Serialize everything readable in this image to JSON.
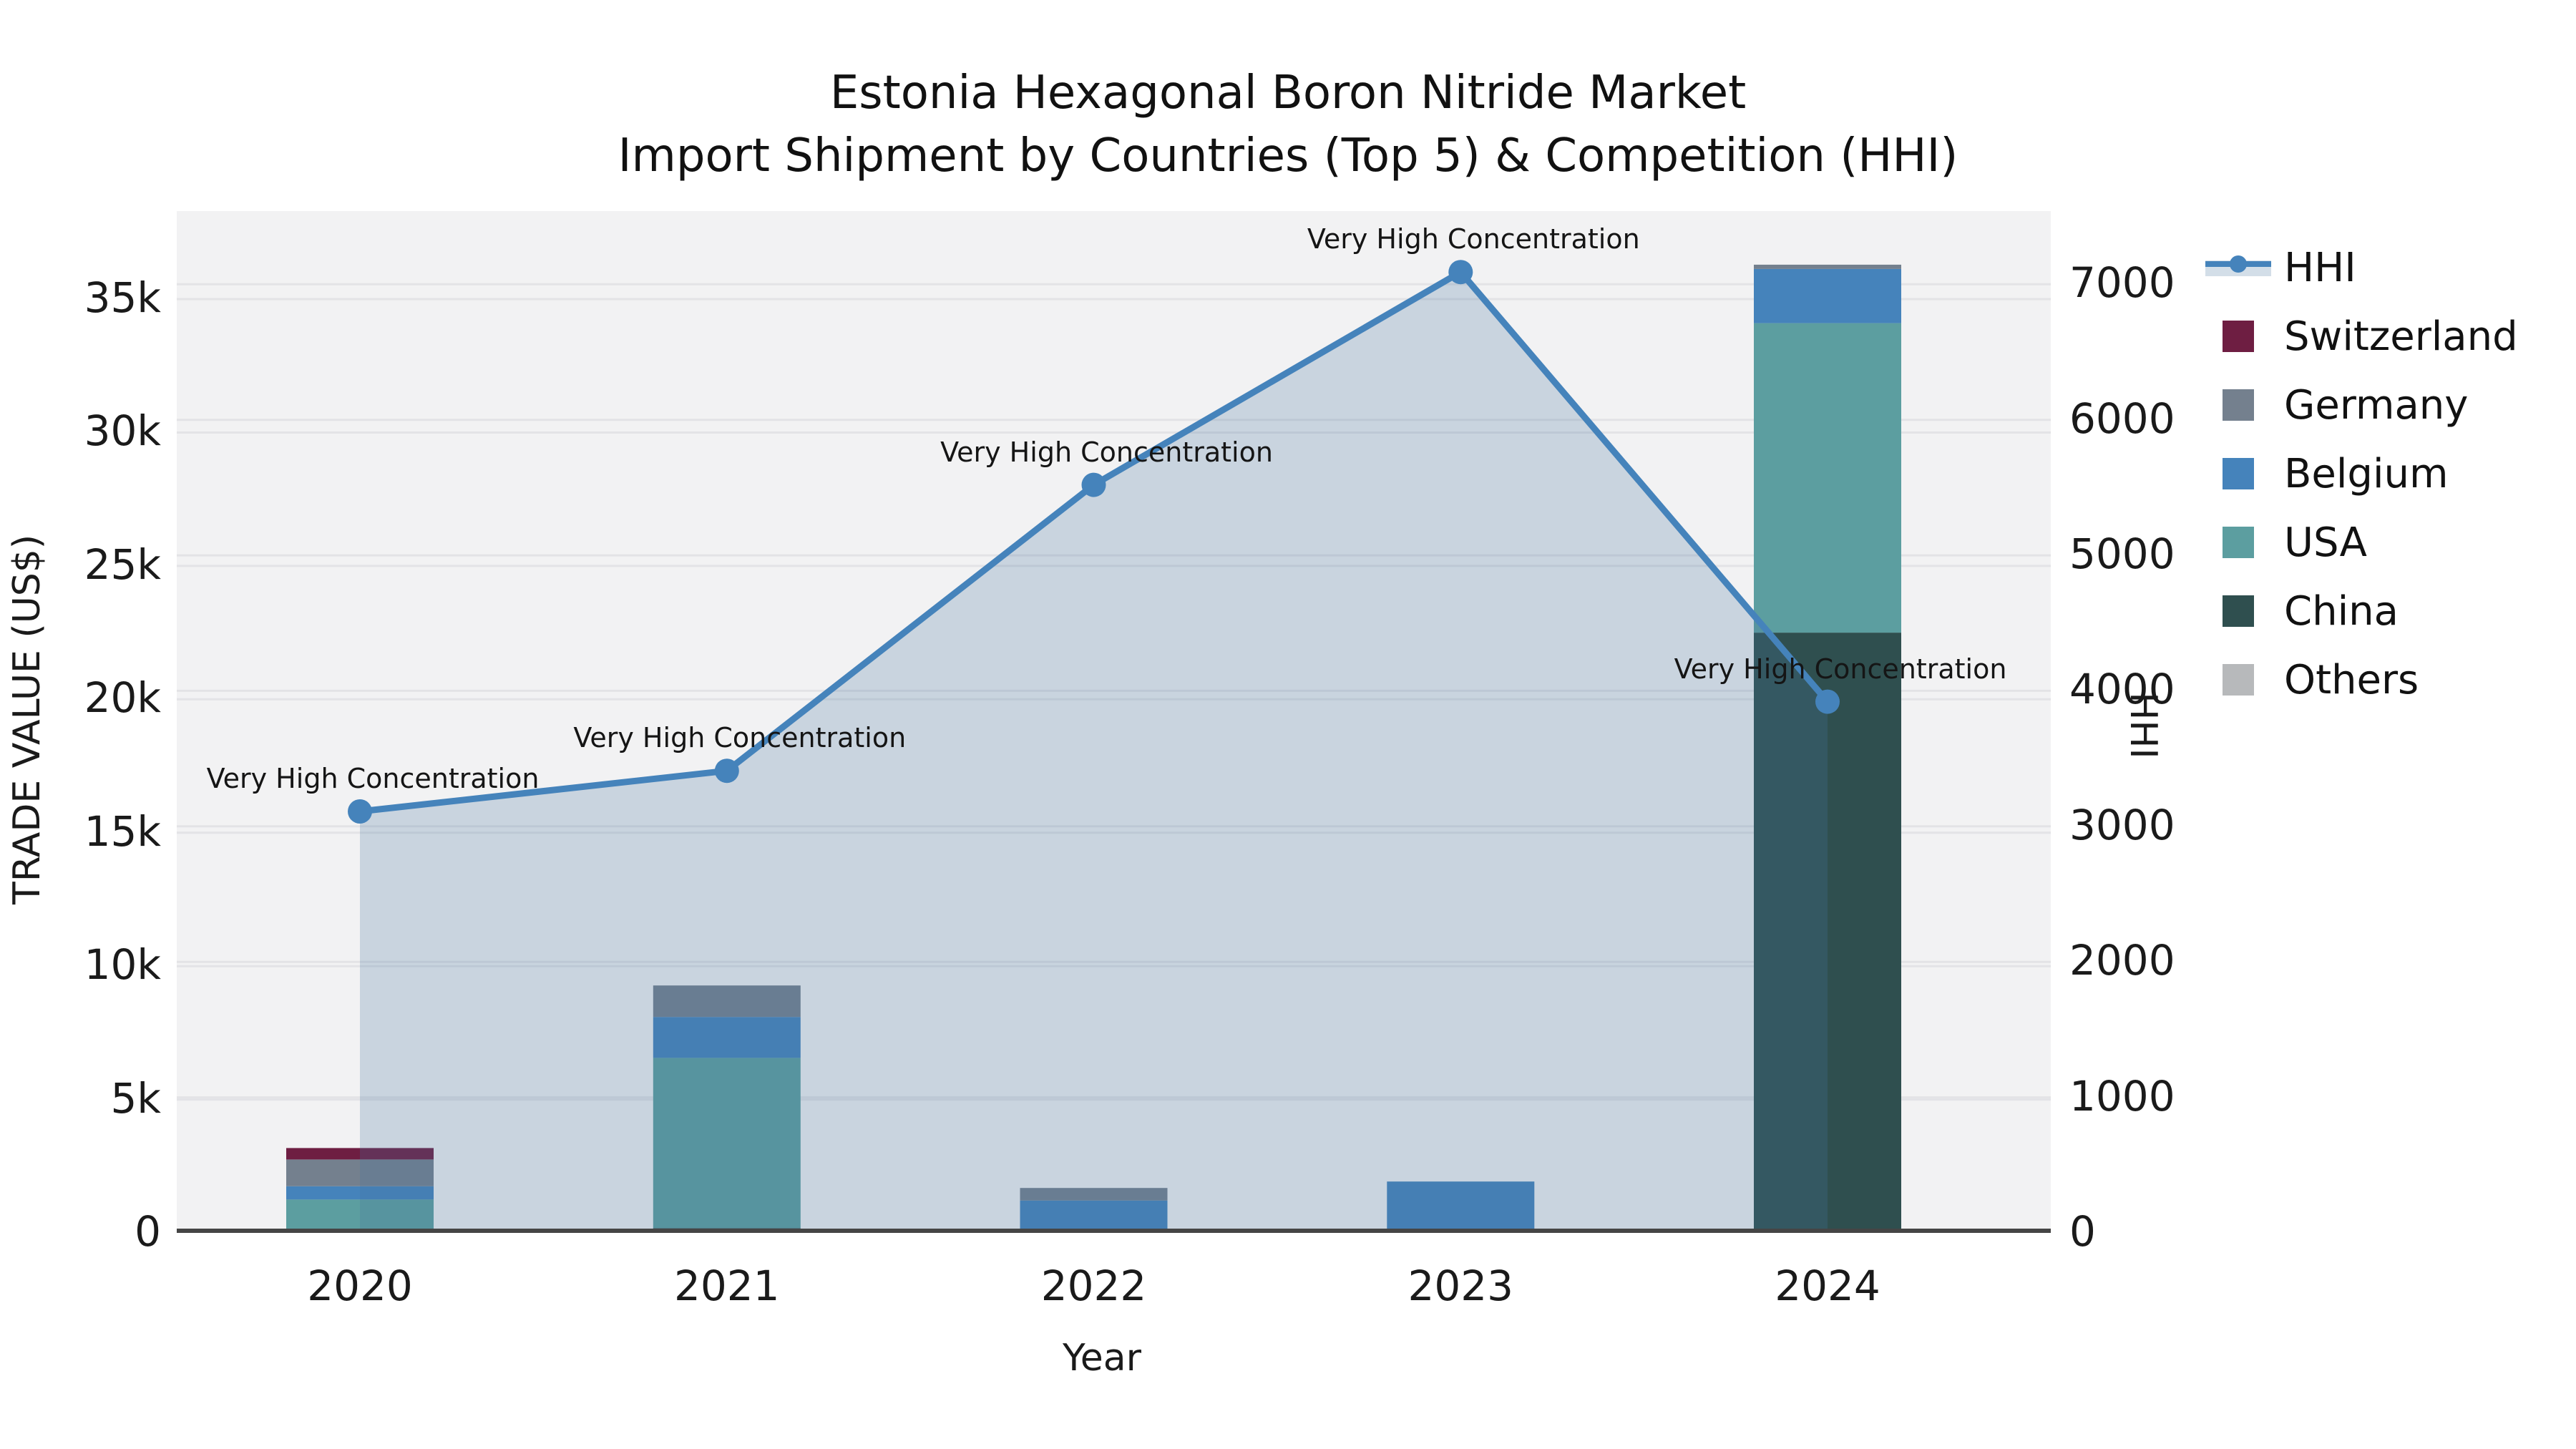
{
  "title": {
    "line1": "Estonia Hexagonal Boron Nitride Market",
    "line2": "Import Shipment by Countries (Top 5) & Competition (HHI)"
  },
  "axes": {
    "x": {
      "label": "Year",
      "categories": [
        "2020",
        "2021",
        "2022",
        "2023",
        "2024"
      ]
    },
    "left": {
      "label": "TRADE VALUE (US$)",
      "tick_labels": [
        "0",
        "5k",
        "10k",
        "15k",
        "20k",
        "25k",
        "30k",
        "35k"
      ],
      "tick_values": [
        0,
        5000,
        10000,
        15000,
        20000,
        25000,
        30000,
        35000
      ],
      "max": 38300
    },
    "right": {
      "label": "HHI",
      "tick_labels": [
        "0",
        "1000",
        "2000",
        "3000",
        "4000",
        "5000",
        "6000",
        "7000"
      ],
      "tick_values": [
        0,
        1000,
        2000,
        3000,
        4000,
        5000,
        6000,
        7000
      ],
      "max": 7540
    }
  },
  "legend": {
    "items": [
      {
        "id": "hhi",
        "label": "HHI",
        "type": "line",
        "color": "#4583BB"
      },
      {
        "id": "switzerland",
        "label": "Switzerland",
        "type": "swatch",
        "color": "#6E1E42"
      },
      {
        "id": "germany",
        "label": "Germany",
        "type": "swatch",
        "color": "#74808E"
      },
      {
        "id": "belgium",
        "label": "Belgium",
        "type": "swatch",
        "color": "#4583BB"
      },
      {
        "id": "usa",
        "label": "USA",
        "type": "swatch",
        "color": "#5C9EA0"
      },
      {
        "id": "china",
        "label": "China",
        "type": "swatch",
        "color": "#2F4F4F"
      },
      {
        "id": "others",
        "label": "Others",
        "type": "swatch",
        "color": "#B7B9BB"
      }
    ]
  },
  "colors": {
    "plot_background": "#F2F2F3",
    "figure_background": "#FFFFFF",
    "gridline": "#E3E3E6",
    "axis_line": "#454545",
    "hhi_line": "#4583BB",
    "hhi_area_fill": "#46749E",
    "text": "#1A1A1A"
  },
  "chart_data": {
    "type": "combo",
    "subtype": "stacked-bar + line",
    "title": "Estonia Hexagonal Boron Nitride Market — Import Shipment by Countries (Top 5) & Competition (HHI)",
    "xlabel": "Year",
    "ylabel_left": "TRADE VALUE (US$)",
    "ylabel_right": "HHI",
    "categories": [
      "2020",
      "2021",
      "2022",
      "2023",
      "2024"
    ],
    "bar_totals": [
      3180,
      9275,
      1685,
      1925,
      36290
    ],
    "series": [
      {
        "name": "Others",
        "color": "#B7B9BB",
        "values": [
          0,
          0,
          0,
          0,
          0
        ]
      },
      {
        "name": "China",
        "color": "#2F4F4F",
        "values": [
          0,
          180,
          0,
          0,
          22500
        ]
      },
      {
        "name": "USA",
        "color": "#5C9EA0",
        "values": [
          1255,
          6380,
          140,
          0,
          11600
        ]
      },
      {
        "name": "Belgium",
        "color": "#4583BB",
        "values": [
          495,
          1535,
          1075,
          1925,
          2030
        ]
      },
      {
        "name": "Germany",
        "color": "#74808E",
        "values": [
          1000,
          1180,
          470,
          0,
          160
        ]
      },
      {
        "name": "Switzerland",
        "color": "#6E1E42",
        "values": [
          430,
          0,
          0,
          0,
          0
        ]
      }
    ],
    "line": {
      "name": "HHI",
      "axis": "right",
      "values": [
        3110,
        3410,
        5520,
        7090,
        3920
      ]
    },
    "annotations": [
      "Very High Concentration",
      "Very High Concentration",
      "Very High Concentration",
      "Very High Concentration",
      "Very High Concentration"
    ],
    "left_ylim": [
      0,
      38300
    ],
    "right_ylim": [
      0,
      7540
    ],
    "grid": true,
    "legend_position": "outside-right"
  }
}
